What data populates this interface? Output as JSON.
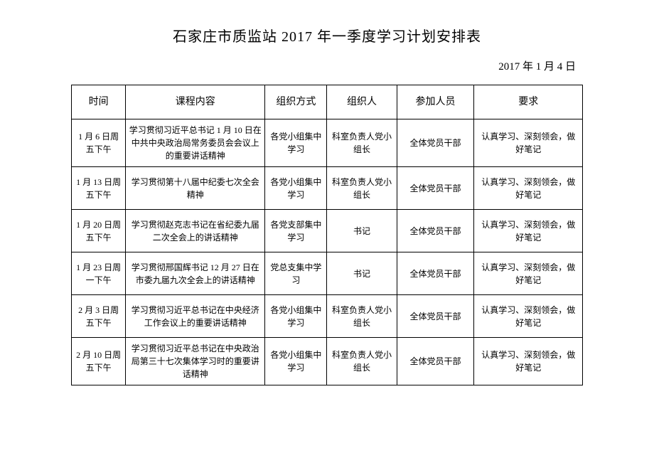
{
  "title": "石家庄市质监站 2017 年一季度学习计划安排表",
  "date": "2017 年 1 月 4 日",
  "headers": {
    "time": "时间",
    "content": "课程内容",
    "method": "组织方式",
    "organizer": "组织人",
    "participants": "参加人员",
    "requirement": "要求"
  },
  "rows": [
    {
      "time": "1 月 6 日周五下午",
      "content": "学习贯彻习近平总书记 1 月 10 日在中共中央政治局常务委员会会议上的重要讲话精神",
      "method": "各党小组集中学习",
      "organizer": "科室负责人党小组长",
      "participants": "全体党员干部",
      "requirement": "认真学习、深刻领会，做好笔记"
    },
    {
      "time": "1 月 13 日周五下午",
      "content": "学习贯彻第十八届中纪委七次全会精神",
      "method": "各党小组集中学习",
      "organizer": "科室负责人党小组长",
      "participants": "全体党员干部",
      "requirement": "认真学习、深刻领会，做好笔记"
    },
    {
      "time": "1 月 20 日周五下午",
      "content": "学习贯彻赵克志书记在省纪委九届二次全会上的讲话精神",
      "method": "各党支部集中学习",
      "organizer": "书记",
      "participants": "全体党员干部",
      "requirement": "认真学习、深刻领会，做好笔记"
    },
    {
      "time": "1 月 23 日周一下午",
      "content": "学习贯彻邢国辉书记 12 月 27 日在市委九届九次全会上的讲话精神",
      "method": "党总支集中学习",
      "organizer": "书记",
      "participants": "全体党员干部",
      "requirement": "认真学习、深刻领会，做好笔记"
    },
    {
      "time": "2 月 3 日周五下午",
      "content": "学习贯彻习近平总书记在中央经济工作会议上的重要讲话精神",
      "method": "各党小组集中学习",
      "organizer": "科室负责人党小组长",
      "participants": "全体党员干部",
      "requirement": "认真学习、深刻领会，做好笔记"
    },
    {
      "time": "2 月 10 日周五下午",
      "content": "学习贯彻习近平总书记在中央政治局第三十七次集体学习时的重要讲话精神",
      "method": "各党小组集中学习",
      "organizer": "科室负责人党小组长",
      "participants": "全体党员干部",
      "requirement": "认真学习、深刻领会，做好笔记"
    }
  ]
}
